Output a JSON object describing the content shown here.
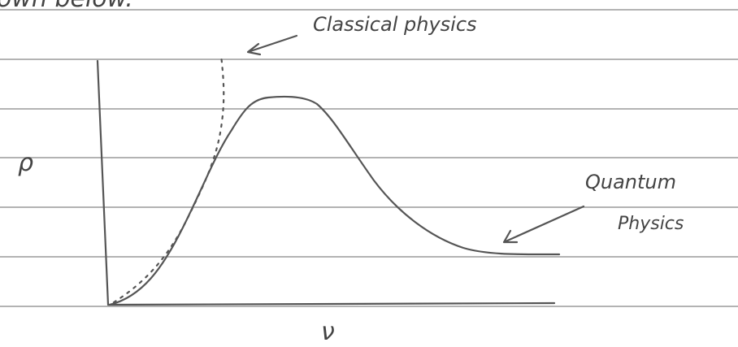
{
  "header_fragment": "own below.",
  "labels": {
    "classical": "Classical physics",
    "quantum_line1": "Quantum",
    "quantum_line2": "Physics",
    "y_axis": "ρ",
    "x_axis": "ν"
  }
}
